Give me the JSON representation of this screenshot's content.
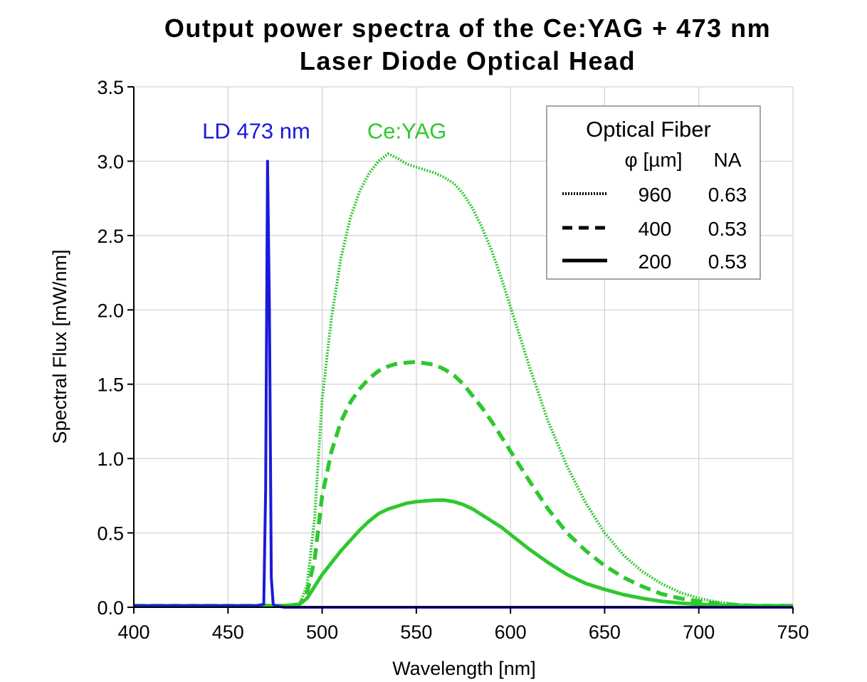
{
  "chart_data": {
    "type": "line",
    "title": [
      "Output power spectra of the Ce:YAG + 473 nm",
      "Laser Diode Optical Head"
    ],
    "xlabel": "Wavelength [nm]",
    "ylabel": "Spectral Flux [mW/nm]",
    "xlim": [
      400,
      750
    ],
    "ylim": [
      0,
      3.5
    ],
    "xticks": [
      400,
      450,
      500,
      550,
      600,
      650,
      700,
      750
    ],
    "xtick_labels": [
      "400",
      "450",
      "500",
      "550",
      "600",
      "650",
      "700",
      "750"
    ],
    "yticks": [
      0,
      0.5,
      1.0,
      1.5,
      2.0,
      2.5,
      3.0,
      3.5
    ],
    "ytick_labels": [
      "0.0",
      "0.5",
      "1.0",
      "1.5",
      "2.0",
      "2.5",
      "3.0",
      "3.5"
    ],
    "grid": true,
    "legend_position": "top-right",
    "annotations": [
      {
        "text": "LD 473 nm",
        "color": "#1a1adc",
        "x": 465,
        "y": 3.2
      },
      {
        "text": "Ce:YAG",
        "color": "#2ec82e",
        "x": 545,
        "y": 3.2
      }
    ],
    "legend": {
      "title": "Optical Fiber",
      "headers": [
        "φ [µm]",
        "NA"
      ],
      "entries": [
        {
          "style": "dotted",
          "diameter": "960",
          "na": "0.63"
        },
        {
          "style": "dashed",
          "diameter": "400",
          "na": "0.53"
        },
        {
          "style": "solid",
          "diameter": "200",
          "na": "0.53"
        }
      ]
    },
    "series": [
      {
        "style": "solid",
        "color": "#1a1adc",
        "group": "LD 473 nm",
        "x": [
          400,
          465,
          469,
          470,
          471,
          472,
          473,
          474,
          475,
          480,
          750
        ],
        "y": [
          0.01,
          0.01,
          0.02,
          0.8,
          3.0,
          2.0,
          0.2,
          0.02,
          0.01,
          0.0,
          0.0
        ]
      },
      {
        "style": "dotted",
        "color": "#2ec82e",
        "group": "Ce:YAG",
        "fiber": "960",
        "x": [
          400,
          480,
          488,
          492,
          496,
          500,
          505,
          510,
          515,
          520,
          525,
          530,
          535,
          540,
          545,
          550,
          555,
          560,
          565,
          570,
          575,
          580,
          585,
          590,
          595,
          600,
          610,
          620,
          630,
          640,
          650,
          660,
          670,
          680,
          690,
          700,
          710,
          720,
          730,
          740,
          750
        ],
        "y": [
          0.01,
          0.01,
          0.02,
          0.15,
          0.6,
          1.4,
          1.95,
          2.35,
          2.62,
          2.8,
          2.92,
          3.0,
          3.05,
          3.02,
          2.98,
          2.96,
          2.94,
          2.92,
          2.89,
          2.85,
          2.78,
          2.68,
          2.55,
          2.4,
          2.22,
          2.02,
          1.62,
          1.25,
          0.95,
          0.7,
          0.5,
          0.35,
          0.24,
          0.16,
          0.1,
          0.06,
          0.035,
          0.02,
          0.01,
          0.01,
          0.01
        ]
      },
      {
        "style": "dashed",
        "color": "#2ec82e",
        "group": "Ce:YAG",
        "fiber": "400",
        "x": [
          400,
          480,
          488,
          492,
          496,
          500,
          505,
          510,
          515,
          520,
          525,
          530,
          535,
          540,
          545,
          550,
          555,
          560,
          565,
          570,
          575,
          580,
          585,
          590,
          595,
          600,
          610,
          620,
          630,
          640,
          650,
          660,
          670,
          680,
          690,
          700,
          710,
          720,
          730,
          740,
          750
        ],
        "y": [
          0.01,
          0.01,
          0.02,
          0.1,
          0.32,
          0.75,
          1.05,
          1.25,
          1.38,
          1.47,
          1.54,
          1.59,
          1.62,
          1.64,
          1.645,
          1.65,
          1.64,
          1.63,
          1.6,
          1.56,
          1.5,
          1.42,
          1.34,
          1.25,
          1.15,
          1.05,
          0.85,
          0.66,
          0.5,
          0.38,
          0.28,
          0.2,
          0.14,
          0.09,
          0.06,
          0.04,
          0.025,
          0.015,
          0.01,
          0.01,
          0.01
        ]
      },
      {
        "style": "solid",
        "color": "#2ec82e",
        "group": "Ce:YAG",
        "fiber": "200",
        "x": [
          400,
          480,
          488,
          492,
          496,
          500,
          505,
          510,
          515,
          520,
          525,
          530,
          535,
          540,
          545,
          550,
          555,
          560,
          565,
          570,
          575,
          580,
          585,
          590,
          595,
          600,
          610,
          620,
          630,
          640,
          650,
          660,
          670,
          680,
          690,
          700,
          710,
          720,
          730,
          740,
          750
        ],
        "y": [
          0.01,
          0.01,
          0.02,
          0.06,
          0.14,
          0.22,
          0.3,
          0.38,
          0.45,
          0.52,
          0.58,
          0.63,
          0.66,
          0.68,
          0.7,
          0.71,
          0.715,
          0.72,
          0.72,
          0.71,
          0.69,
          0.66,
          0.62,
          0.58,
          0.54,
          0.49,
          0.39,
          0.3,
          0.22,
          0.16,
          0.12,
          0.085,
          0.06,
          0.04,
          0.028,
          0.02,
          0.014,
          0.01,
          0.01,
          0.01,
          0.01
        ]
      }
    ]
  }
}
